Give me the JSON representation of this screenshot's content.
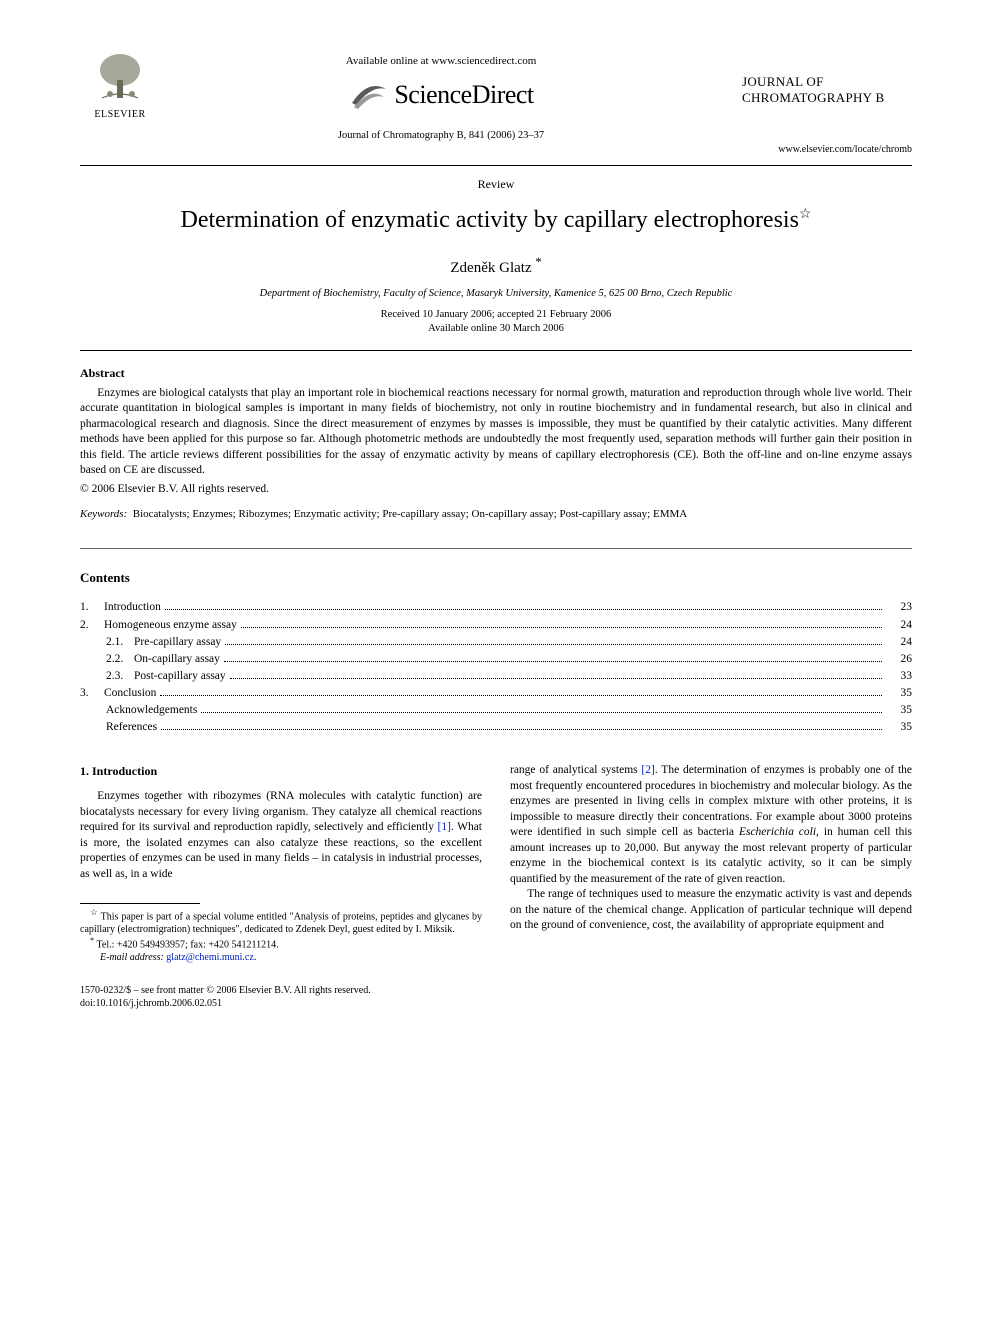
{
  "header": {
    "elsevier_label": "ELSEVIER",
    "available_online": "Available online at www.sciencedirect.com",
    "sd_brand": "ScienceDirect",
    "journal_ref": "Journal of Chromatography B, 841 (2006) 23–37",
    "journal_name_line1": "JOURNAL OF",
    "journal_name_line2": "CHROMATOGRAPHY B",
    "journal_url": "www.elsevier.com/locate/chromb"
  },
  "article": {
    "type": "Review",
    "title": "Determination of enzymatic activity by capillary electrophoresis",
    "title_note_marker": "☆",
    "author": "Zdeněk Glatz",
    "author_marker": "*",
    "affiliation": "Department of Biochemistry, Faculty of Science, Masaryk University, Kamenice 5, 625 00 Brno, Czech Republic",
    "dates_line1": "Received 10 January 2006; accepted 21 February 2006",
    "dates_line2": "Available online 30 March 2006"
  },
  "abstract": {
    "heading": "Abstract",
    "text": "Enzymes are biological catalysts that play an important role in biochemical reactions necessary for normal growth, maturation and reproduction through whole live world. Their accurate quantitation in biological samples is important in many fields of biochemistry, not only in routine biochemistry and in fundamental research, but also in clinical and pharmacological research and diagnosis. Since the direct measurement of enzymes by masses is impossible, they must be quantified by their catalytic activities. Many different methods have been applied for this purpose so far. Although photometric methods are undoubtedly the most frequently used, separation methods will further gain their position in this field. The article reviews different possibilities for the assay of enzymatic activity by means of capillary electrophoresis (CE). Both the off-line and on-line enzyme assays based on CE are discussed.",
    "copyright": "© 2006 Elsevier B.V. All rights reserved."
  },
  "keywords": {
    "label": "Keywords:",
    "text": "Biocatalysts; Enzymes; Ribozymes; Enzymatic activity; Pre-capillary assay; On-capillary assay; Post-capillary assay; EMMA"
  },
  "contents": {
    "heading": "Contents",
    "items": [
      {
        "num": "1.",
        "label": "Introduction",
        "page": "23",
        "level": 0
      },
      {
        "num": "2.",
        "label": "Homogeneous enzyme assay",
        "page": "24",
        "level": 0
      },
      {
        "num": "2.1.",
        "label": "Pre-capillary assay",
        "page": "24",
        "level": 1
      },
      {
        "num": "2.2.",
        "label": "On-capillary assay",
        "page": "26",
        "level": 1
      },
      {
        "num": "2.3.",
        "label": "Post-capillary assay",
        "page": "33",
        "level": 1
      },
      {
        "num": "3.",
        "label": "Conclusion",
        "page": "35",
        "level": 0
      },
      {
        "num": "",
        "label": "Acknowledgements",
        "page": "35",
        "level": 0,
        "noNum": true
      },
      {
        "num": "",
        "label": "References",
        "page": "35",
        "level": 0,
        "noNum": true
      }
    ]
  },
  "body": {
    "section_heading": "1. Introduction",
    "col1_p1a": "Enzymes together with ribozymes (RNA molecules with catalytic function) are biocatalysts necessary for every living organism. They catalyze all chemical reactions required for its survival and reproduction rapidly, selectively and efficiently ",
    "ref1": "[1]",
    "col1_p1b": ". What is more, the isolated enzymes can also catalyze these reactions, so the excellent properties of enzymes can be used in many fields – in catalysis in industrial processes, as well as, in a wide",
    "col2_p1a": "range of analytical systems ",
    "ref2": "[2]",
    "col2_p1b": ". The determination of enzymes is probably one of the most frequently encountered procedures in biochemistry and molecular biology. As the enzymes are presented in living cells in complex mixture with other proteins, it is impossible to measure directly their concentrations. For example about 3000 proteins were identified in such simple cell as bacteria ",
    "col2_em": "Escherichia coli",
    "col2_p1c": ", in human cell this amount increases up to 20,000. But anyway the most relevant property of particular enzyme in the biochemical context is its catalytic activity, so it can be simply quantified by the measurement of the rate of given reaction.",
    "col2_p2": "The range of techniques used to measure the enzymatic activity is vast and depends on the nature of the chemical change. Application of particular technique will depend on the ground of convenience, cost, the availability of appropriate equipment and"
  },
  "footnotes": {
    "fn1_marker": "☆",
    "fn1_text": " This paper is part of a special volume entitled \"Analysis of proteins, peptides and glycanes by capillary (electromigration) techniques\", dedicated to Zdenek Deyl, guest edited by I. Miksik.",
    "fn2_marker": "*",
    "fn2_text": " Tel.: +420 549493957; fax: +420 541211214.",
    "email_label": "E-mail address:",
    "email": "glatz@chemi.muni.cz",
    "email_suffix": "."
  },
  "bottom": {
    "line1": "1570-0232/$ – see front matter © 2006 Elsevier B.V. All rights reserved.",
    "line2": "doi:10.1016/j.jchromb.2006.02.051"
  },
  "colors": {
    "link": "#0020c0",
    "text": "#000000",
    "bg": "#ffffff"
  }
}
